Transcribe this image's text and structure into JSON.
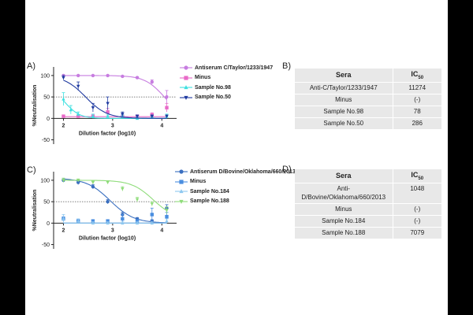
{
  "panels": [
    {
      "letter": "A)"
    },
    {
      "letter": "B)"
    },
    {
      "letter": "C)"
    },
    {
      "letter": "D)"
    }
  ],
  "chart_data": [
    {
      "type": "line",
      "xlabel": "Dilution factor (log10)",
      "ylabel": "%Neutralisation",
      "xlim": [
        1.8,
        4.3
      ],
      "ylim": [
        -60,
        120
      ],
      "xticks": [
        "2",
        "3",
        "4"
      ],
      "yticks": [
        "100",
        "50",
        "0",
        "-50"
      ],
      "reference_line": 50,
      "legend_position": "right",
      "series": [
        {
          "name": "Antiserum C/Taylor/1233/1947",
          "color": "#c77de0",
          "marker": "circle",
          "x": [
            2.0,
            2.3,
            2.6,
            2.9,
            3.2,
            3.5,
            3.8,
            4.1
          ],
          "y": [
            100,
            100,
            100,
            100,
            98,
            95,
            85,
            50
          ],
          "err": [
            0,
            0,
            0,
            0,
            0,
            2,
            5,
            15
          ],
          "curve": {
            "top": 100,
            "bottom": 0,
            "ic50_log": 4.05,
            "hill": 2.2
          }
        },
        {
          "name": "Minus",
          "color": "#e86ac8",
          "marker": "square",
          "x": [
            2.0,
            2.3,
            2.6,
            2.9,
            3.2,
            3.5,
            3.8,
            4.1
          ],
          "y": [
            5,
            5,
            5,
            15,
            5,
            5,
            8,
            25
          ],
          "err": [
            3,
            3,
            3,
            8,
            3,
            3,
            5,
            10
          ],
          "curve": {
            "flat": 4
          }
        },
        {
          "name": "Sample No.98",
          "color": "#3ee0e0",
          "marker": "triangle",
          "x": [
            2.0,
            2.15,
            2.3,
            2.6,
            2.9,
            3.2,
            3.5,
            3.8,
            4.1
          ],
          "y": [
            45,
            20,
            10,
            5,
            5,
            5,
            0,
            5,
            5
          ],
          "err": [
            15,
            10,
            5,
            5,
            3,
            3,
            3,
            3,
            5
          ],
          "curve": {
            "top": 70,
            "bottom": 0,
            "ic50_log": 2.05,
            "hill": 3.0
          }
        },
        {
          "name": "Sample No.50",
          "color": "#1f3aa0",
          "marker": "triangle-down",
          "x": [
            2.0,
            2.3,
            2.6,
            2.9,
            3.2,
            3.5,
            3.8,
            4.1
          ],
          "y": [
            95,
            75,
            25,
            35,
            10,
            5,
            5,
            5
          ],
          "err": [
            5,
            10,
            10,
            15,
            5,
            3,
            3,
            3
          ],
          "curve": {
            "top": 100,
            "bottom": 0,
            "ic50_log": 2.45,
            "hill": 2.0
          }
        }
      ]
    },
    {
      "type": "line",
      "xlabel": "Dilution factor (log10)",
      "ylabel": "%Neutralisation",
      "xlim": [
        1.8,
        4.3
      ],
      "ylim": [
        -60,
        120
      ],
      "xticks": [
        "2",
        "3",
        "4"
      ],
      "yticks": [
        "100",
        "50",
        "0",
        "-50"
      ],
      "reference_line": 50,
      "legend_position": "right",
      "series": [
        {
          "name": "Antiserum D/Bovine/Oklahoma/660/2013",
          "color": "#3a6fc0",
          "marker": "circle",
          "x": [
            2.0,
            2.3,
            2.6,
            2.9,
            3.2,
            3.5,
            3.8,
            4.1
          ],
          "y": [
            100,
            95,
            85,
            50,
            20,
            10,
            5,
            35
          ],
          "err": [
            3,
            5,
            5,
            5,
            5,
            3,
            3,
            8
          ],
          "curve": {
            "top": 105,
            "bottom": 0,
            "ic50_log": 2.95,
            "hill": 1.8
          }
        },
        {
          "name": "Minus",
          "color": "#4a8ee0",
          "marker": "square",
          "x": [
            2.0,
            2.3,
            2.6,
            2.9,
            3.2,
            3.5,
            3.8,
            4.1
          ],
          "y": [
            10,
            5,
            5,
            5,
            10,
            5,
            20,
            15
          ],
          "err": [
            5,
            3,
            3,
            3,
            10,
            3,
            15,
            10
          ],
          "curve": {
            "flat": 0
          }
        },
        {
          "name": "Sample No.184",
          "color": "#8ec8f0",
          "marker": "triangle",
          "x": [
            2.0,
            2.3,
            2.6,
            2.9,
            3.2,
            3.5,
            3.8,
            4.1
          ],
          "y": [
            10,
            5,
            0,
            0,
            0,
            0,
            0,
            5
          ],
          "err": [
            10,
            5,
            3,
            3,
            3,
            3,
            3,
            5
          ],
          "curve": {
            "flat": 0
          }
        },
        {
          "name": "Sample No.188",
          "color": "#8fdc7a",
          "marker": "triangle-down",
          "x": [
            2.0,
            2.3,
            2.6,
            2.9,
            3.2,
            3.5,
            3.8,
            4.1
          ],
          "y": [
            100,
            100,
            95,
            95,
            80,
            55,
            45,
            30
          ],
          "err": [
            5,
            3,
            3,
            3,
            5,
            5,
            5,
            8
          ],
          "curve": {
            "top": 100,
            "bottom": 10,
            "ic50_log": 3.82,
            "hill": 2.0
          }
        }
      ]
    }
  ],
  "table_b": {
    "header_sera": "Sera",
    "header_ic": "IC",
    "header_ic_sub": "50",
    "rows": [
      {
        "sera": "Anti-C/Taylor/1233/1947",
        "ic50": "11274"
      },
      {
        "sera": "Minus",
        "ic50": "(-)"
      },
      {
        "sera": "Sample No.98",
        "ic50": "78"
      },
      {
        "sera": "Sample No.50",
        "ic50": "286"
      }
    ]
  },
  "table_d": {
    "header_sera": "Sera",
    "header_ic": "IC",
    "header_ic_sub": "50",
    "rows": [
      {
        "sera_line1": "Anti-",
        "sera_line2": "D/Bovine/Oklahoma/660/2013",
        "ic50": "1048"
      },
      {
        "sera": "Minus",
        "ic50": "(-)"
      },
      {
        "sera": "Sample No.184",
        "ic50": "(-)"
      },
      {
        "sera": "Sample No.188",
        "ic50": "7079"
      }
    ]
  }
}
